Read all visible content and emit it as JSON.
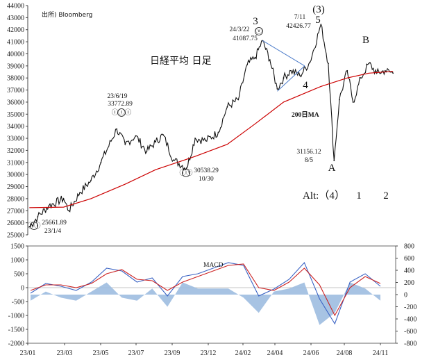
{
  "chart_data": [
    {
      "type": "line",
      "title": "日経平均 日足",
      "source": "出所) Bloomberg",
      "ylim": [
        25000,
        44000
      ],
      "yticks": [
        "25000",
        "26000",
        "27000",
        "28000",
        "29000",
        "30000",
        "31000",
        "32000",
        "33000",
        "34000",
        "35000",
        "36000",
        "37000",
        "38000",
        "39000",
        "40000",
        "41000",
        "42000",
        "43000",
        "44000"
      ],
      "xlabels": [
        "23/01",
        "23/03",
        "23/05",
        "23/07",
        "23/09",
        "23/12",
        "24/02",
        "24/04",
        "24/06",
        "24/08",
        "24/11"
      ],
      "grid": false,
      "series": [
        {
          "name": "",
          "color": "#111111",
          "x": [
            "23/01/04",
            "23/01/20",
            "23/02/10",
            "23/03/10",
            "23/03/20",
            "23/04/10",
            "23/05/01",
            "23/05/20",
            "23/06/19",
            "23/07/05",
            "23/07/25",
            "23/08/15",
            "23/09/01",
            "23/09/15",
            "23/10/05",
            "23/10/30",
            "23/11/15",
            "23/12/05",
            "23/12/29",
            "24/01/15",
            "24/02/05",
            "24/02/22",
            "24/03/08",
            "24/03/22",
            "24/04/05",
            "24/04/19",
            "24/05/01",
            "24/05/15",
            "24/06/01",
            "24/06/20",
            "24/07/11",
            "24/07/25",
            "24/08/05",
            "24/08/15",
            "24/08/30",
            "24/09/10",
            "24/09/25",
            "24/10/10",
            "24/10/25",
            "24/11/10",
            "24/11/25"
          ],
          "values": [
            25661.89,
            26500,
            27400,
            28000,
            27000,
            28500,
            29500,
            31000,
            33772.89,
            32500,
            33200,
            31900,
            32700,
            33300,
            31200,
            30538.29,
            33000,
            32800,
            33500,
            35600,
            36200,
            39100,
            39700,
            41087.75,
            39500,
            37100,
            38000,
            38600,
            38200,
            39300,
            42426.77,
            39200,
            31156.12,
            36200,
            38600,
            36000,
            38000,
            39200,
            38400,
            38600,
            38400
          ]
        },
        {
          "name": "200日MA",
          "color": "#cc0000",
          "x": [
            "23/01/04",
            "23/03/10",
            "23/05/01",
            "23/07/05",
            "23/09/01",
            "23/11/15",
            "24/01/15",
            "24/03/08",
            "24/05/01",
            "24/07/11",
            "24/08/30",
            "24/10/10",
            "24/11/25"
          ],
          "values": [
            27250,
            27300,
            28000,
            29200,
            30400,
            31500,
            32500,
            34200,
            36000,
            37300,
            38000,
            38400,
            38550
          ]
        }
      ],
      "annotations": [
        {
          "text": "3",
          "x": "24/03/22",
          "y": 43100
        },
        {
          "text": "ⓥ",
          "x": "24/03/22",
          "y": 42000
        },
        {
          "text": "24/3/22",
          "x": "24/03/22",
          "y": 41800
        },
        {
          "text": "41087.75",
          "x": "24/03/22",
          "y": 41200
        },
        {
          "text": "(3)",
          "x": "24/07/11",
          "y": 43800
        },
        {
          "text": "5",
          "x": "24/07/11",
          "y": 42900
        },
        {
          "text": "7/11",
          "x": "24/07/11",
          "y": 42600
        },
        {
          "text": "42426.77",
          "x": "24/07/11",
          "y": 42000
        },
        {
          "text": "4",
          "x": "24/05/01",
          "y": 36800
        },
        {
          "text": "B",
          "x": "24/09/25",
          "y": 40700
        },
        {
          "text": "23/6/19",
          "x": "23/06/19",
          "y": 35700
        },
        {
          "text": "33772.89",
          "x": "23/06/19",
          "y": 35000
        },
        {
          "text": "ⓘⓘⓘ",
          "x": "23/06/19",
          "y": 34000
        },
        {
          "text": "ⓘⓥ",
          "x": "23/10/30",
          "y": 29100
        },
        {
          "text": "30538.29",
          "x": "23/10/30",
          "y": 29600
        },
        {
          "text": "10/30",
          "x": "23/10/30",
          "y": 28700
        },
        {
          "text": "ⓘⓘ",
          "x": "23/01/04",
          "y": 24800
        },
        {
          "text": "25661.89",
          "x": "23/01/04",
          "y": 25600
        },
        {
          "text": "23/1/4",
          "x": "23/01/04",
          "y": 24900
        },
        {
          "text": "31156.12",
          "x": "24/08/05",
          "y": 30800
        },
        {
          "text": "8/5",
          "x": "24/08/05",
          "y": 30100
        },
        {
          "text": "A",
          "x": "24/08/05",
          "y": 29300
        },
        {
          "text": "Alt:（4）",
          "x": "",
          "y": 0
        },
        {
          "text": "1",
          "x": "",
          "y": 0
        },
        {
          "text": "2",
          "x": "",
          "y": 0
        },
        {
          "text": "200日MA",
          "x": "",
          "y": 0
        }
      ]
    },
    {
      "type": "area",
      "title": "MACD",
      "ylim_left": [
        -2000,
        1500
      ],
      "ylim_right": [
        -800,
        800
      ],
      "yticks_left": [
        "1500",
        "1000",
        "500",
        "0",
        "-500",
        "-1000",
        "-1500",
        "-2000"
      ],
      "yticks_right": [
        "800",
        "600",
        "400",
        "200",
        "0",
        "-200",
        "-400",
        "-600",
        "-800"
      ],
      "x": [
        "23/01",
        "23/02",
        "23/03",
        "23/04",
        "23/05",
        "23/06",
        "23/07",
        "23/08",
        "23/09",
        "23/10",
        "23/11",
        "23/12",
        "24/01",
        "24/02",
        "24/03",
        "24/04",
        "24/05",
        "24/06",
        "24/07",
        "24/07b",
        "24/08",
        "24/09",
        "24/10",
        "24/11"
      ],
      "series": [
        {
          "name": "",
          "color": "#3a63c4",
          "values": [
            -200,
            150,
            50,
            -100,
            200,
            700,
            600,
            200,
            350,
            -300,
            400,
            500,
            700,
            900,
            800,
            -300,
            -50,
            300,
            900,
            -400,
            -1300,
            200,
            500,
            50
          ]
        },
        {
          "name": "",
          "color": "#cc2222",
          "values": [
            -100,
            100,
            100,
            0,
            150,
            500,
            650,
            300,
            250,
            -100,
            200,
            400,
            600,
            800,
            850,
            0,
            -100,
            200,
            700,
            100,
            -1000,
            0,
            400,
            150
          ]
        },
        {
          "name": "",
          "color": "#9dbce0",
          "values": [
            -100,
            50,
            -50,
            -100,
            50,
            200,
            -50,
            -100,
            100,
            -200,
            200,
            100,
            100,
            100,
            -50,
            -300,
            50,
            100,
            200,
            -500,
            -300,
            200,
            100,
            -100
          ]
        }
      ]
    }
  ]
}
